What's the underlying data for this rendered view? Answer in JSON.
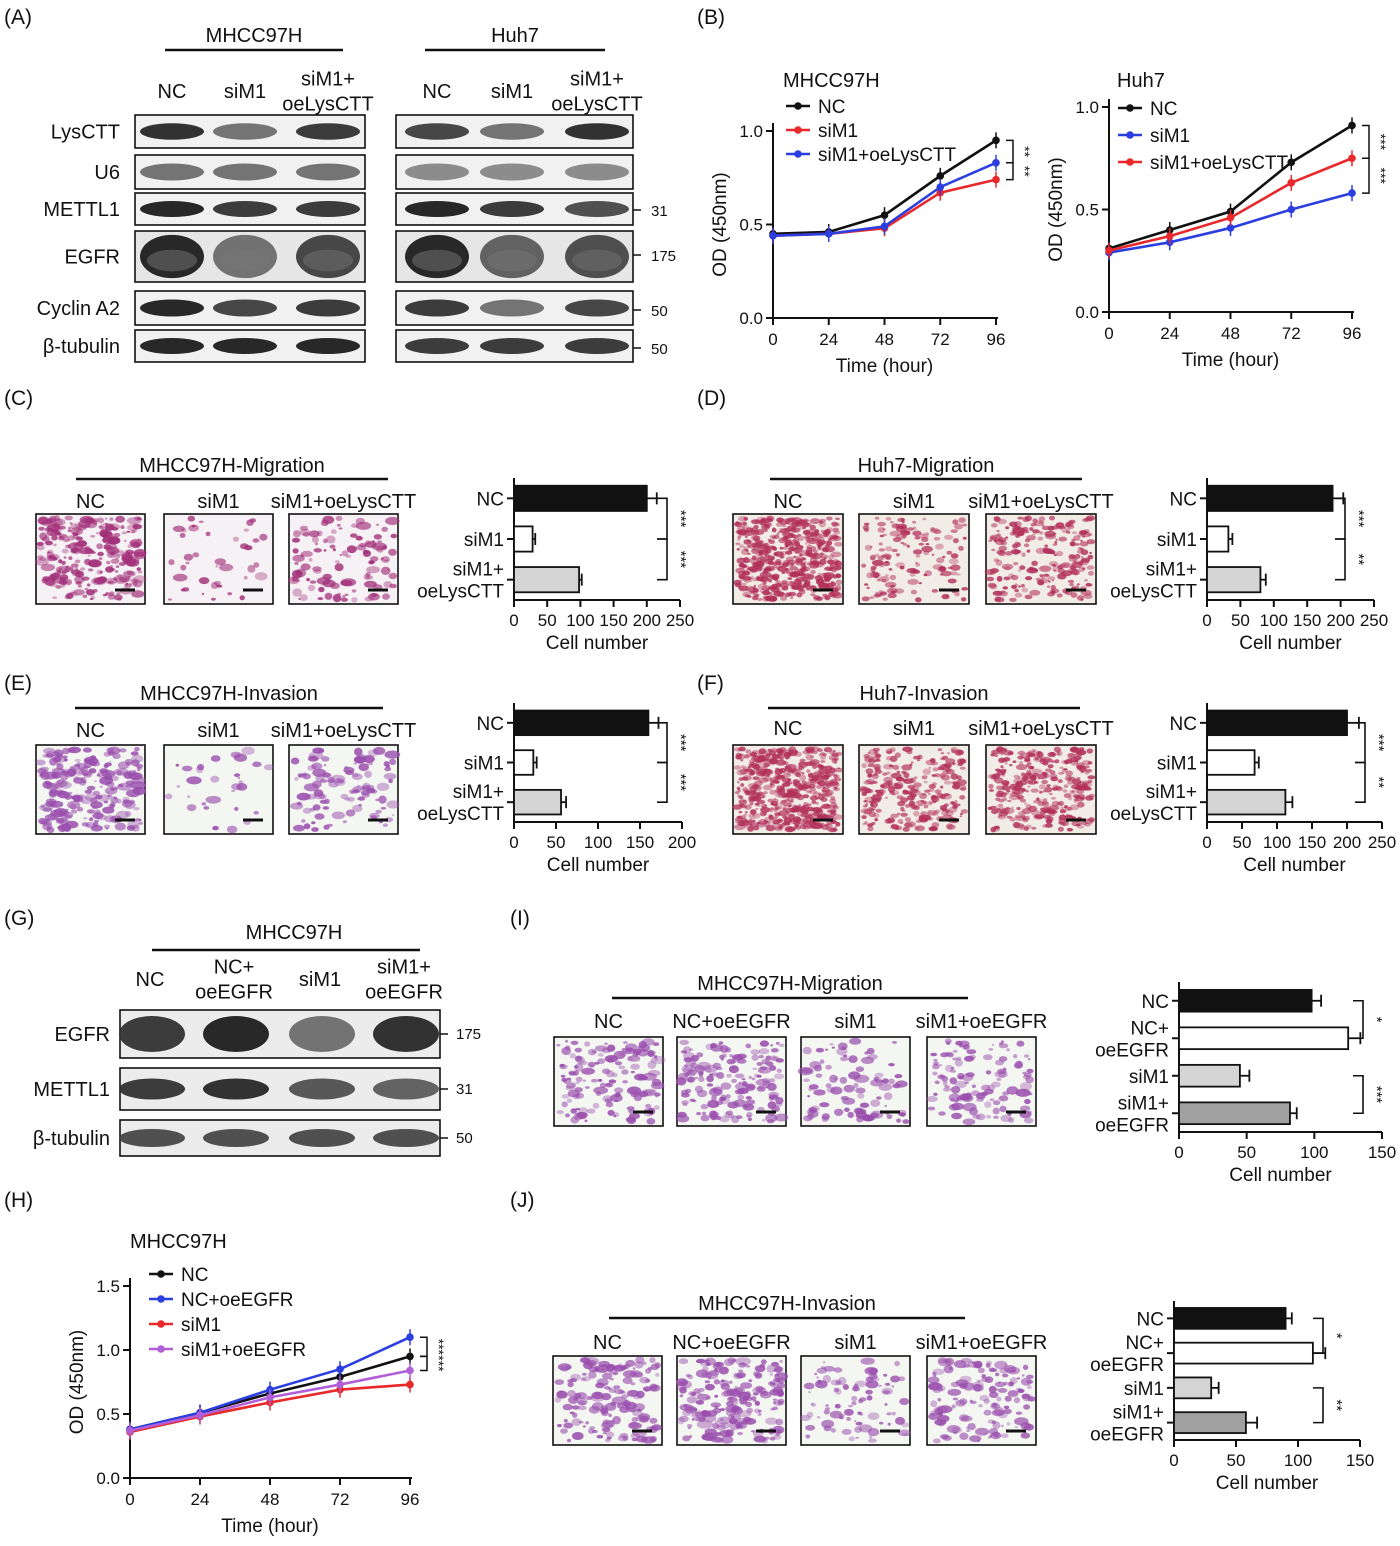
{
  "panels": {
    "A": {
      "label": "(A)",
      "groups": [
        {
          "name": "MHCC97H",
          "lanes": [
            "NC",
            "siM1",
            [
              "siM1+",
              "oeLysCTT"
            ]
          ]
        },
        {
          "name": "Huh7",
          "lanes": [
            "NC",
            "siM1",
            [
              "siM1+",
              "oeLysCTT"
            ]
          ]
        }
      ],
      "rows": [
        "LysCTT",
        "U6",
        "METTL1",
        "EGFR",
        "Cyclin A2",
        "β-tubulin"
      ],
      "mw": [
        "31",
        "175",
        "50",
        "50"
      ]
    },
    "B": {
      "label": "(B)"
    },
    "C": {
      "label": "(C)",
      "title": "MHCC97H-Migration",
      "columns": [
        "NC",
        "siM1",
        "siM1+oeLysCTT"
      ]
    },
    "D": {
      "label": "(D)",
      "title": "Huh7-Migration",
      "columns": [
        "NC",
        "siM1",
        "siM1+oeLysCTT"
      ]
    },
    "E": {
      "label": "(E)",
      "title": "MHCC97H-Invasion",
      "columns": [
        "NC",
        "siM1",
        "siM1+oeLysCTT"
      ]
    },
    "F": {
      "label": "(F)",
      "title": "Huh7-Invasion",
      "columns": [
        "NC",
        "siM1",
        "siM1+oeLysCTT"
      ]
    },
    "G": {
      "label": "(G)",
      "group": "MHCC97H",
      "lanes": [
        "NC",
        [
          "NC+",
          "oeEGFR"
        ],
        "siM1",
        [
          "siM1+",
          "oeEGFR"
        ]
      ],
      "rows": [
        "EGFR",
        "METTL1",
        "β-tubulin"
      ],
      "mw": [
        "175",
        "31",
        "50"
      ]
    },
    "H": {
      "label": "(H)"
    },
    "I": {
      "label": "(I)",
      "title": "MHCC97H-Migration",
      "columns": [
        "NC",
        "NC+oeEGFR",
        "siM1",
        "siM1+oeEGFR"
      ]
    },
    "J": {
      "label": "(J)",
      "title": "MHCC97H-Invasion",
      "columns": [
        "NC",
        "NC+oeEGFR",
        "siM1",
        "siM1+oeEGFR"
      ]
    }
  },
  "colors": {
    "black": "#111111",
    "red": "#e8282a",
    "blue": "#2b3ee0",
    "purple": "#b15fd8",
    "light_gray": "#d4d4d4",
    "dark_gray": "#a0a0a0",
    "stain": "#a2307a"
  },
  "chart_data": [
    {
      "id": "B1",
      "type": "line",
      "title": "MHCC97H",
      "xlabel": "Time (hour)",
      "ylabel": "OD (450nm)",
      "x": [
        0,
        24,
        48,
        72,
        96
      ],
      "xlim": [
        0,
        96
      ],
      "ylim": [
        0,
        1.0
      ],
      "yticks": [
        "0.0",
        "0.5",
        "1.0"
      ],
      "series": [
        {
          "name": "NC",
          "color": "#111111",
          "values": [
            0.45,
            0.46,
            0.55,
            0.76,
            0.95
          ]
        },
        {
          "name": "siM1",
          "color": "#e8282a",
          "values": [
            0.44,
            0.45,
            0.48,
            0.67,
            0.74
          ]
        },
        {
          "name": "siM1+oeLysCTT",
          "color": "#2b3ee0",
          "values": [
            0.44,
            0.45,
            0.49,
            0.7,
            0.83
          ]
        }
      ],
      "significance": [
        "**",
        "**"
      ]
    },
    {
      "id": "B2",
      "type": "line",
      "title": "Huh7",
      "xlabel": "Time (hour)",
      "ylabel": "OD (450nm)",
      "x": [
        0,
        24,
        48,
        72,
        96
      ],
      "xlim": [
        0,
        96
      ],
      "ylim": [
        0,
        1.0
      ],
      "yticks": [
        "0.0",
        "0.5",
        "1.0"
      ],
      "series": [
        {
          "name": "NC",
          "color": "#111111",
          "values": [
            0.31,
            0.4,
            0.49,
            0.73,
            0.91
          ]
        },
        {
          "name": "siM1",
          "color": "#2b3ee0",
          "values": [
            0.29,
            0.34,
            0.41,
            0.5,
            0.58
          ]
        },
        {
          "name": "siM1+oeLysCTT",
          "color": "#e8282a",
          "values": [
            0.3,
            0.37,
            0.46,
            0.63,
            0.75
          ]
        }
      ],
      "significance": [
        "***",
        "***"
      ]
    },
    {
      "id": "C",
      "type": "bar",
      "xlabel": "Cell number",
      "categories": [
        "NC",
        "siM1",
        [
          "siM1+",
          "oeLysCTT"
        ]
      ],
      "values": [
        200,
        28,
        98
      ],
      "errors": [
        15,
        4,
        4
      ],
      "xlim": [
        0,
        250
      ],
      "xticks": [
        "0",
        "50",
        "100",
        "150",
        "200",
        "250"
      ],
      "fills": [
        "#111111",
        "#ffffff",
        "#d4d4d4"
      ],
      "significance": [
        "***",
        "***"
      ]
    },
    {
      "id": "D",
      "type": "bar",
      "xlabel": "Cell number",
      "categories": [
        "NC",
        "siM1",
        [
          "siM1+",
          "oeLysCTT"
        ]
      ],
      "values": [
        188,
        32,
        80
      ],
      "errors": [
        16,
        6,
        8
      ],
      "xlim": [
        0,
        250
      ],
      "xticks": [
        "0",
        "50",
        "100",
        "150",
        "200",
        "250"
      ],
      "fills": [
        "#111111",
        "#ffffff",
        "#d4d4d4"
      ],
      "significance": [
        "***",
        "**"
      ]
    },
    {
      "id": "E",
      "type": "bar",
      "xlabel": "Cell number",
      "categories": [
        "NC",
        "siM1",
        [
          "siM1+",
          "oeLysCTT"
        ]
      ],
      "values": [
        160,
        23,
        56
      ],
      "errors": [
        12,
        4,
        6
      ],
      "xlim": [
        0,
        200
      ],
      "xticks": [
        "0",
        "50",
        "100",
        "150",
        "200"
      ],
      "fills": [
        "#111111",
        "#ffffff",
        "#d4d4d4"
      ],
      "significance": [
        "***",
        "***"
      ]
    },
    {
      "id": "F",
      "type": "bar",
      "xlabel": "Cell number",
      "categories": [
        "NC",
        "siM1",
        [
          "siM1+",
          "oeLysCTT"
        ]
      ],
      "values": [
        200,
        68,
        112
      ],
      "errors": [
        17,
        6,
        10
      ],
      "xlim": [
        0,
        250
      ],
      "xticks": [
        "0",
        "50",
        "100",
        "150",
        "200",
        "250"
      ],
      "fills": [
        "#111111",
        "#ffffff",
        "#d4d4d4"
      ],
      "significance": [
        "***",
        "**"
      ]
    },
    {
      "id": "H",
      "type": "line",
      "title": "MHCC97H",
      "xlabel": "Time (hour)",
      "ylabel": "OD (450nm)",
      "x": [
        0,
        24,
        48,
        72,
        96
      ],
      "xlim": [
        0,
        96
      ],
      "ylim": [
        0,
        1.5
      ],
      "yticks": [
        "0.0",
        "0.5",
        "1.0",
        "1.5"
      ],
      "series": [
        {
          "name": "NC",
          "color": "#111111",
          "values": [
            0.38,
            0.51,
            0.66,
            0.79,
            0.95
          ]
        },
        {
          "name": "NC+oeEGFR",
          "color": "#2b3ee0",
          "values": [
            0.38,
            0.51,
            0.69,
            0.85,
            1.1
          ]
        },
        {
          "name": "siM1",
          "color": "#e8282a",
          "values": [
            0.36,
            0.48,
            0.59,
            0.69,
            0.73
          ]
        },
        {
          "name": "siM1+oeEGFR",
          "color": "#b15fd8",
          "values": [
            0.37,
            0.49,
            0.63,
            0.73,
            0.84
          ]
        }
      ],
      "significance": [
        "***",
        "***"
      ]
    },
    {
      "id": "I",
      "type": "bar",
      "xlabel": "Cell number",
      "categories": [
        "NC",
        [
          "NC+",
          "oeEGFR"
        ],
        "siM1",
        [
          "siM1+",
          "oeEGFR"
        ]
      ],
      "values": [
        98,
        125,
        45,
        82
      ],
      "errors": [
        7,
        9,
        7,
        5
      ],
      "xlim": [
        0,
        150
      ],
      "xticks": [
        "0",
        "50",
        "100",
        "150"
      ],
      "fills": [
        "#111111",
        "#ffffff",
        "#d4d4d4",
        "#a0a0a0"
      ],
      "significance": [
        "*",
        "***"
      ]
    },
    {
      "id": "J",
      "type": "bar",
      "xlabel": "Cell number",
      "categories": [
        "NC",
        [
          "NC+",
          "oeEGFR"
        ],
        "siM1",
        [
          "siM1+",
          "oeEGFR"
        ]
      ],
      "values": [
        90,
        112,
        30,
        58
      ],
      "errors": [
        5,
        10,
        6,
        9
      ],
      "xlim": [
        0,
        150
      ],
      "xticks": [
        "0",
        "50",
        "100",
        "150"
      ],
      "fills": [
        "#111111",
        "#ffffff",
        "#d4d4d4",
        "#a0a0a0"
      ],
      "significance": [
        "*",
        "**"
      ]
    }
  ]
}
